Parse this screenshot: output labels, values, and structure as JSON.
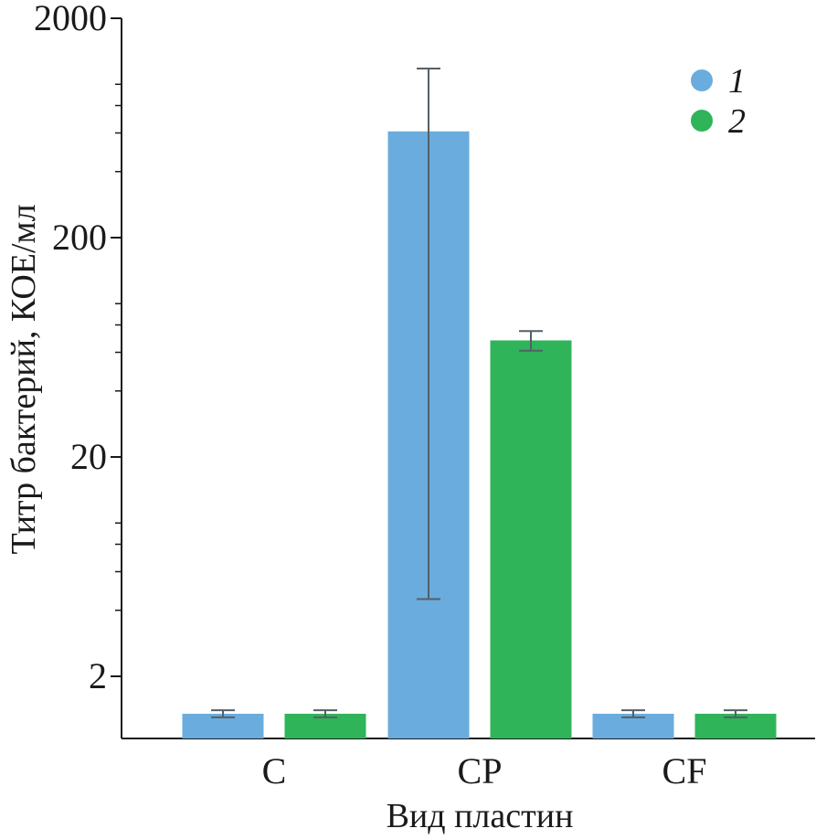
{
  "chart_data": {
    "type": "bar",
    "ylabel": "Титр бактерий, КОЕ/мл",
    "xlabel": "Вид пластин",
    "yscale": "log",
    "ylim": [
      1,
      2000
    ],
    "yticks": [
      "2",
      "20",
      "200",
      "2000"
    ],
    "categories": [
      "C",
      "CP",
      "CF"
    ],
    "series": [
      {
        "name": "1",
        "color": "#6aacdd",
        "values": [
          1.35,
          610,
          1.35
        ],
        "err_low": [
          1.3,
          4.5,
          1.3
        ],
        "err_high": [
          1.4,
          1180,
          1.4
        ]
      },
      {
        "name": "2",
        "color": "#2fb45a",
        "values": [
          1.35,
          68,
          1.35
        ],
        "err_low": [
          1.3,
          61,
          1.3
        ],
        "err_high": [
          1.4,
          75,
          1.4
        ]
      }
    ],
    "legend_position": "top-right",
    "grid": false
  }
}
